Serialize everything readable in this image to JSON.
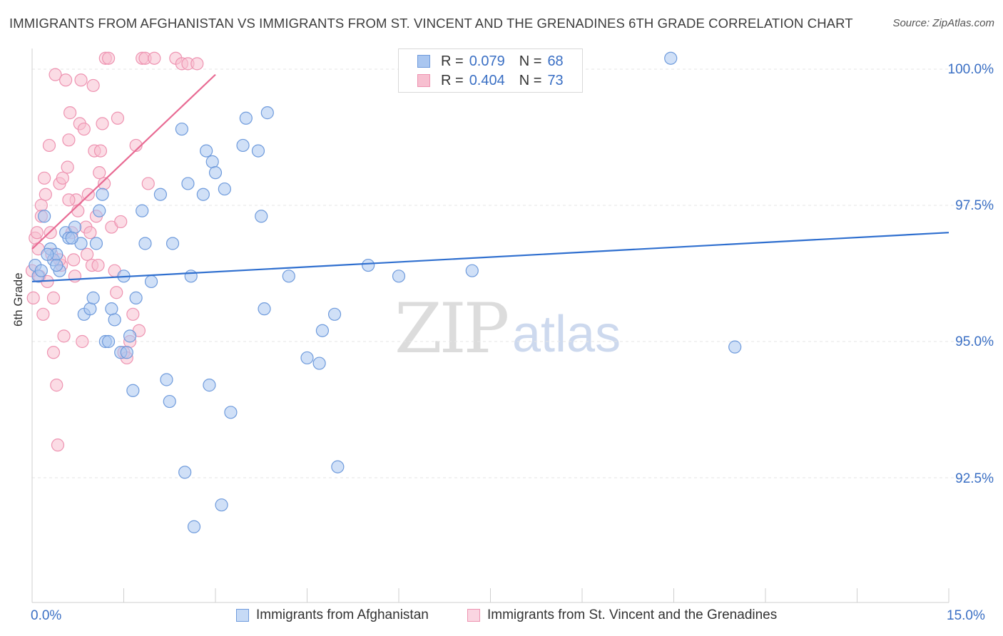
{
  "header": {
    "title": "IMMIGRANTS FROM AFGHANISTAN VS IMMIGRANTS FROM ST. VINCENT AND THE GRENADINES 6TH GRADE CORRELATION CHART",
    "source": "Source: ZipAtlas.com"
  },
  "watermark": {
    "zip": "ZIP",
    "atlas": "atlas"
  },
  "legend": {
    "blue": {
      "r_label": "R =",
      "r_value": "0.079",
      "n_label": "N =",
      "n_value": "68"
    },
    "pink": {
      "r_label": "R =",
      "r_value": "0.404",
      "n_label": "N =",
      "n_value": "73"
    }
  },
  "bottom_legend": {
    "blue_label": "Immigrants from Afghanistan",
    "pink_label": "Immigrants from St. Vincent and the Grenadines"
  },
  "colors": {
    "blue_fill": "#a9c6f0",
    "blue_stroke": "#6f9bdc",
    "blue_line": "#2f6fcf",
    "pink_fill": "#f7bfd0",
    "pink_stroke": "#ee93b1",
    "pink_line": "#e86a93",
    "grid": "#e6e6e6",
    "axis_text": "#3a6fc4"
  },
  "chart_data": {
    "type": "scatter",
    "title": "IMMIGRANTS FROM AFGHANISTAN VS IMMIGRANTS FROM ST. VINCENT AND THE GRENADINES 6TH GRADE CORRELATION CHART",
    "xlabel": "",
    "ylabel": "6th Grade",
    "xlim": [
      0,
      15
    ],
    "ylim": [
      90.2,
      100.4
    ],
    "x_tick_labels": {
      "min": "0.0%",
      "max": "15.0%"
    },
    "y_ticks": [
      92.5,
      95.0,
      97.5,
      100.0
    ],
    "y_tick_labels": [
      "92.5%",
      "95.0%",
      "97.5%",
      "100.0%"
    ],
    "series": [
      {
        "name": "Immigrants from Afghanistan",
        "color": "blue",
        "R": 0.079,
        "N": 68,
        "trend": {
          "x": [
            0.0,
            15.0
          ],
          "y": [
            96.1,
            97.0
          ]
        },
        "points": [
          [
            0.05,
            96.4
          ],
          [
            0.1,
            96.2
          ],
          [
            0.15,
            96.3
          ],
          [
            0.2,
            97.3
          ],
          [
            0.3,
            96.7
          ],
          [
            0.35,
            96.5
          ],
          [
            0.4,
            96.6
          ],
          [
            0.45,
            96.3
          ],
          [
            0.55,
            97.0
          ],
          [
            0.6,
            96.9
          ],
          [
            0.7,
            97.1
          ],
          [
            0.8,
            96.8
          ],
          [
            0.85,
            95.5
          ],
          [
            0.95,
            95.6
          ],
          [
            1.0,
            95.8
          ],
          [
            1.1,
            97.4
          ],
          [
            1.15,
            97.7
          ],
          [
            1.2,
            95.0
          ],
          [
            1.25,
            95.0
          ],
          [
            1.3,
            95.6
          ],
          [
            1.35,
            95.4
          ],
          [
            1.45,
            94.8
          ],
          [
            1.5,
            96.2
          ],
          [
            1.55,
            94.8
          ],
          [
            1.6,
            95.1
          ],
          [
            1.65,
            94.1
          ],
          [
            1.7,
            95.8
          ],
          [
            1.8,
            97.4
          ],
          [
            1.85,
            96.8
          ],
          [
            1.95,
            96.1
          ],
          [
            2.1,
            97.7
          ],
          [
            2.2,
            94.3
          ],
          [
            2.25,
            93.9
          ],
          [
            2.3,
            96.8
          ],
          [
            2.45,
            98.9
          ],
          [
            2.5,
            92.6
          ],
          [
            2.6,
            96.2
          ],
          [
            2.55,
            97.9
          ],
          [
            2.65,
            91.6
          ],
          [
            2.8,
            97.7
          ],
          [
            2.85,
            98.5
          ],
          [
            2.9,
            94.2
          ],
          [
            2.95,
            98.3
          ],
          [
            3.0,
            98.1
          ],
          [
            3.1,
            92.0
          ],
          [
            3.15,
            97.8
          ],
          [
            3.25,
            93.7
          ],
          [
            3.45,
            98.6
          ],
          [
            3.5,
            99.1
          ],
          [
            3.7,
            98.5
          ],
          [
            3.75,
            97.3
          ],
          [
            3.8,
            95.6
          ],
          [
            3.85,
            99.2
          ],
          [
            4.2,
            96.2
          ],
          [
            4.5,
            94.7
          ],
          [
            4.7,
            94.6
          ],
          [
            4.75,
            95.2
          ],
          [
            4.95,
            95.5
          ],
          [
            5.0,
            92.7
          ],
          [
            5.5,
            96.4
          ],
          [
            6.0,
            96.2
          ],
          [
            7.2,
            96.3
          ],
          [
            10.45,
            100.2
          ],
          [
            11.5,
            94.9
          ],
          [
            0.25,
            96.6
          ],
          [
            0.4,
            96.4
          ],
          [
            0.65,
            96.9
          ],
          [
            1.05,
            96.8
          ]
        ]
      },
      {
        "name": "Immigrants from St. Vincent and the Grenadines",
        "color": "pink",
        "R": 0.404,
        "N": 73,
        "trend": {
          "x": [
            0.0,
            3.0
          ],
          "y": [
            96.7,
            99.9
          ]
        },
        "points": [
          [
            0.0,
            96.3
          ],
          [
            0.02,
            95.8
          ],
          [
            0.05,
            96.9
          ],
          [
            0.08,
            97.0
          ],
          [
            0.1,
            96.7
          ],
          [
            0.12,
            96.2
          ],
          [
            0.15,
            97.5
          ],
          [
            0.18,
            95.5
          ],
          [
            0.2,
            98.0
          ],
          [
            0.22,
            97.7
          ],
          [
            0.25,
            96.1
          ],
          [
            0.28,
            98.6
          ],
          [
            0.3,
            97.0
          ],
          [
            0.32,
            96.6
          ],
          [
            0.35,
            95.8
          ],
          [
            0.38,
            99.9
          ],
          [
            0.4,
            94.2
          ],
          [
            0.42,
            93.1
          ],
          [
            0.45,
            97.9
          ],
          [
            0.48,
            96.4
          ],
          [
            0.5,
            98.0
          ],
          [
            0.52,
            95.1
          ],
          [
            0.55,
            99.8
          ],
          [
            0.58,
            98.2
          ],
          [
            0.6,
            98.7
          ],
          [
            0.62,
            99.2
          ],
          [
            0.65,
            97.0
          ],
          [
            0.68,
            96.5
          ],
          [
            0.7,
            96.2
          ],
          [
            0.72,
            97.6
          ],
          [
            0.75,
            97.4
          ],
          [
            0.78,
            99.0
          ],
          [
            0.8,
            99.8
          ],
          [
            0.82,
            95.0
          ],
          [
            0.85,
            98.9
          ],
          [
            0.88,
            97.1
          ],
          [
            0.9,
            96.6
          ],
          [
            0.92,
            97.7
          ],
          [
            0.95,
            97.0
          ],
          [
            0.98,
            96.4
          ],
          [
            1.0,
            99.7
          ],
          [
            1.02,
            98.5
          ],
          [
            1.05,
            97.3
          ],
          [
            1.08,
            96.4
          ],
          [
            1.1,
            98.1
          ],
          [
            1.12,
            98.5
          ],
          [
            1.15,
            99.0
          ],
          [
            1.18,
            97.9
          ],
          [
            1.2,
            100.2
          ],
          [
            1.25,
            100.2
          ],
          [
            1.3,
            97.1
          ],
          [
            1.35,
            96.3
          ],
          [
            1.38,
            95.9
          ],
          [
            1.4,
            99.1
          ],
          [
            1.45,
            97.2
          ],
          [
            1.5,
            94.8
          ],
          [
            1.55,
            94.7
          ],
          [
            1.6,
            95.0
          ],
          [
            1.65,
            95.5
          ],
          [
            1.7,
            98.6
          ],
          [
            1.75,
            95.2
          ],
          [
            1.8,
            100.2
          ],
          [
            1.85,
            100.2
          ],
          [
            1.9,
            97.9
          ],
          [
            2.0,
            100.2
          ],
          [
            2.35,
            100.2
          ],
          [
            2.45,
            100.1
          ],
          [
            2.55,
            100.1
          ],
          [
            2.7,
            100.1
          ],
          [
            0.15,
            97.3
          ],
          [
            0.35,
            94.8
          ],
          [
            0.6,
            97.6
          ],
          [
            0.45,
            96.5
          ]
        ]
      }
    ]
  }
}
